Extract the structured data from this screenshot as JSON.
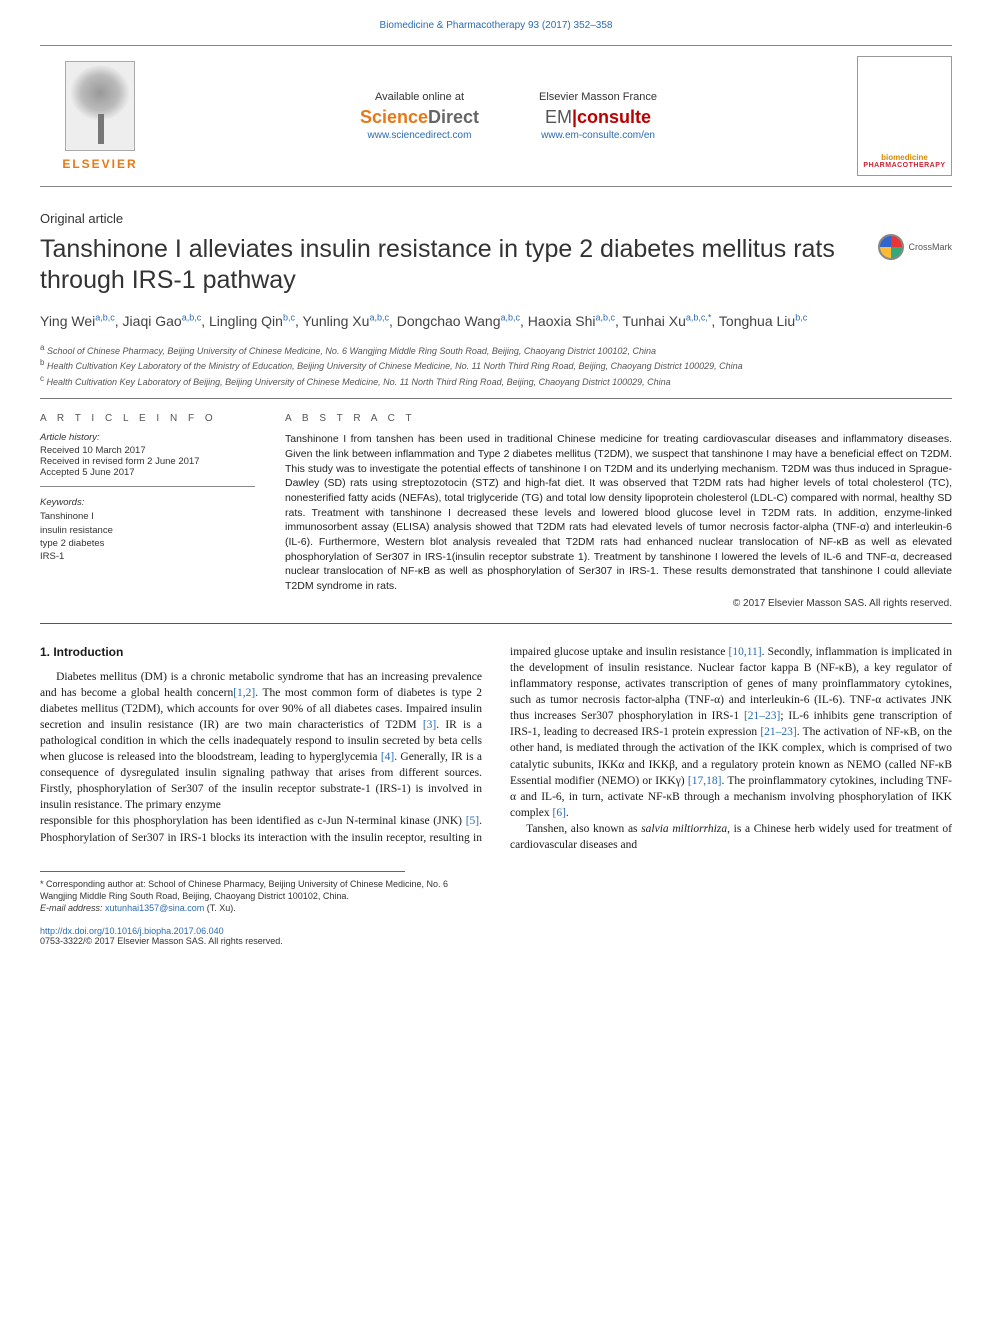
{
  "running_head": "Biomedicine & Pharmacotherapy 93 (2017) 352–358",
  "banner": {
    "publisher": "ELSEVIER",
    "available_label": "Available online at",
    "sd_brand_sci": "Science",
    "sd_brand_dir": "Direct",
    "sd_url": "www.sciencedirect.com",
    "emc_label": "Elsevier Masson France",
    "emc_brand_em": "EM",
    "emc_brand_con": "consulte",
    "emc_url": "www.em-consulte.com/en",
    "journal_thumb1": "biomedicine",
    "journal_thumb2": "PHARMACOTHERAPY"
  },
  "section_type": "Original article",
  "title": "Tanshinone I alleviates insulin resistance in type 2 diabetes mellitus rats through IRS-1 pathway",
  "crossmark": "CrossMark",
  "authors_html": "Ying Wei<sup>a,b,c</sup>, Jiaqi Gao<sup>a,b,c</sup>, Lingling Qin<sup>b,c</sup>, Yunling Xu<sup>a,b,c</sup>, Dongchao Wang<sup>a,b,c</sup>, Haoxia Shi<sup>a,b,c</sup>, Tunhai Xu<sup>a,b,c,*</sup>, Tonghua Liu<sup>b,c</sup>",
  "affiliations": {
    "a": "School of Chinese Pharmacy, Beijing University of Chinese Medicine, No. 6 Wangjing Middle Ring South Road, Beijing, Chaoyang District 100102, China",
    "b": "Health Cultivation Key Laboratory of the Ministry of Education, Beijing University of Chinese Medicine, No. 11 North Third Ring Road, Beijing, Chaoyang District 100029, China",
    "c": "Health Cultivation Key Laboratory of Beijing, Beijing University of Chinese Medicine, No. 11 North Third Ring Road, Beijing, Chaoyang District 100029, China"
  },
  "info": {
    "head": "A R T I C L E  I N F O",
    "history_label": "Article history:",
    "received": "Received 10 March 2017",
    "revised": "Received in revised form 2 June 2017",
    "accepted": "Accepted 5 June 2017",
    "keywords_label": "Keywords:",
    "keywords": [
      "Tanshinone I",
      "insulin resistance",
      "type 2 diabetes",
      "IRS-1"
    ]
  },
  "abstract": {
    "head": "A B S T R A C T",
    "text": "Tanshinone I from tanshen has been used in traditional Chinese medicine for treating cardiovascular diseases and inflammatory diseases. Given the link between inflammation and Type 2 diabetes mellitus (T2DM), we suspect that tanshinone I may have a beneficial effect on T2DM. This study was to investigate the potential effects of tanshinone I on T2DM and its underlying mechanism. T2DM was thus induced in Sprague-Dawley (SD) rats using streptozotocin (STZ) and high-fat diet. It was observed that T2DM rats had higher levels of total cholesterol (TC), nonesterified fatty acids (NEFAs), total triglyceride (TG) and total low density lipoprotein cholesterol (LDL-C) compared with normal, healthy SD rats. Treatment with tanshinone I decreased these levels and lowered blood glucose level in T2DM rats. In addition, enzyme-linked immunosorbent assay (ELISA) analysis showed that T2DM rats had elevated levels of tumor necrosis factor-alpha (TNF-α) and interleukin-6 (IL-6). Furthermore, Western blot analysis revealed that T2DM rats had enhanced nuclear translocation of NF-κB as well as elevated phosphorylation of Ser307 in IRS-1(insulin receptor substrate 1). Treatment by tanshinone I lowered the levels of IL-6 and TNF-α, decreased nuclear translocation of NF-κB as well as phosphorylation of Ser307 in IRS-1. These results demonstrated that tanshinone I could alleviate T2DM syndrome in rats.",
    "copyright": "© 2017 Elsevier Masson SAS. All rights reserved."
  },
  "body": {
    "h_intro": "1. Introduction",
    "p1": "Diabetes mellitus (DM) is a chronic metabolic syndrome that has an increasing prevalence and has become a global health concern[1,2]. The most common form of diabetes is type 2 diabetes mellitus (T2DM), which accounts for over 90% of all diabetes cases. Impaired insulin secretion and insulin resistance (IR) are two main characteristics of T2DM [3]. IR is a pathological condition in which the cells inadequately respond to insulin secreted by beta cells when glucose is released into the bloodstream, leading to hyperglycemia [4]. Generally, IR is a consequence of dysregulated insulin signaling pathway that arises from different sources. Firstly, phosphorylation of Ser307 of the insulin receptor substrate-1 (IRS-1) is involved in insulin resistance. The primary enzyme",
    "p2": "responsible for this phosphorylation has been identified as c-Jun N-terminal kinase (JNK) [5]. Phosphorylation of Ser307 in IRS-1 blocks its interaction with the insulin receptor, resulting in impaired glucose uptake and insulin resistance [10,11]. Secondly, inflammation is implicated in the development of insulin resistance. Nuclear factor kappa B (NF-κB), a key regulator of inflammatory response, activates transcription of genes of many proinflammatory cytokines, such as tumor necrosis factor-alpha (TNF-α) and interleukin-6 (IL-6). TNF-α activates JNK thus increases Ser307 phosphorylation in IRS-1 [21–23]; IL-6 inhibits gene transcription of IRS-1, leading to decreased IRS-1 protein expression [21–23]. The activation of NF-κB, on the other hand, is mediated through the activation of the IKK complex, which is comprised of two catalytic subunits, IKKα and IKKβ, and a regulatory protein known as NEMO (called NF-κB Essential modifier (NEMO) or IKKγ) [17,18]. The proinflammatory cytokines, including TNF-α and IL-6, in turn, activate NF-κB through a mechanism involving phosphorylation of IKK complex [6].",
    "p3": "Tanshen, also known as salvia miltiorrhiza, is a Chinese herb widely used for treatment of cardiovascular diseases and"
  },
  "footnotes": {
    "corr": "* Corresponding author at: School of Chinese Pharmacy, Beijing University of Chinese Medicine, No. 6 Wangjing Middle Ring South Road, Beijing, Chaoyang District 100102, China.",
    "email_label": "E-mail address:",
    "email": "xutunhai1357@sina.com",
    "email_name": "(T. Xu)."
  },
  "doi": {
    "url": "http://dx.doi.org/10.1016/j.biopha.2017.06.040",
    "issn_line": "0753-3322/© 2017 Elsevier Masson SAS. All rights reserved."
  },
  "colors": {
    "link": "#2b6cb0",
    "orange": "#e67817",
    "text": "#1a1a1a"
  }
}
